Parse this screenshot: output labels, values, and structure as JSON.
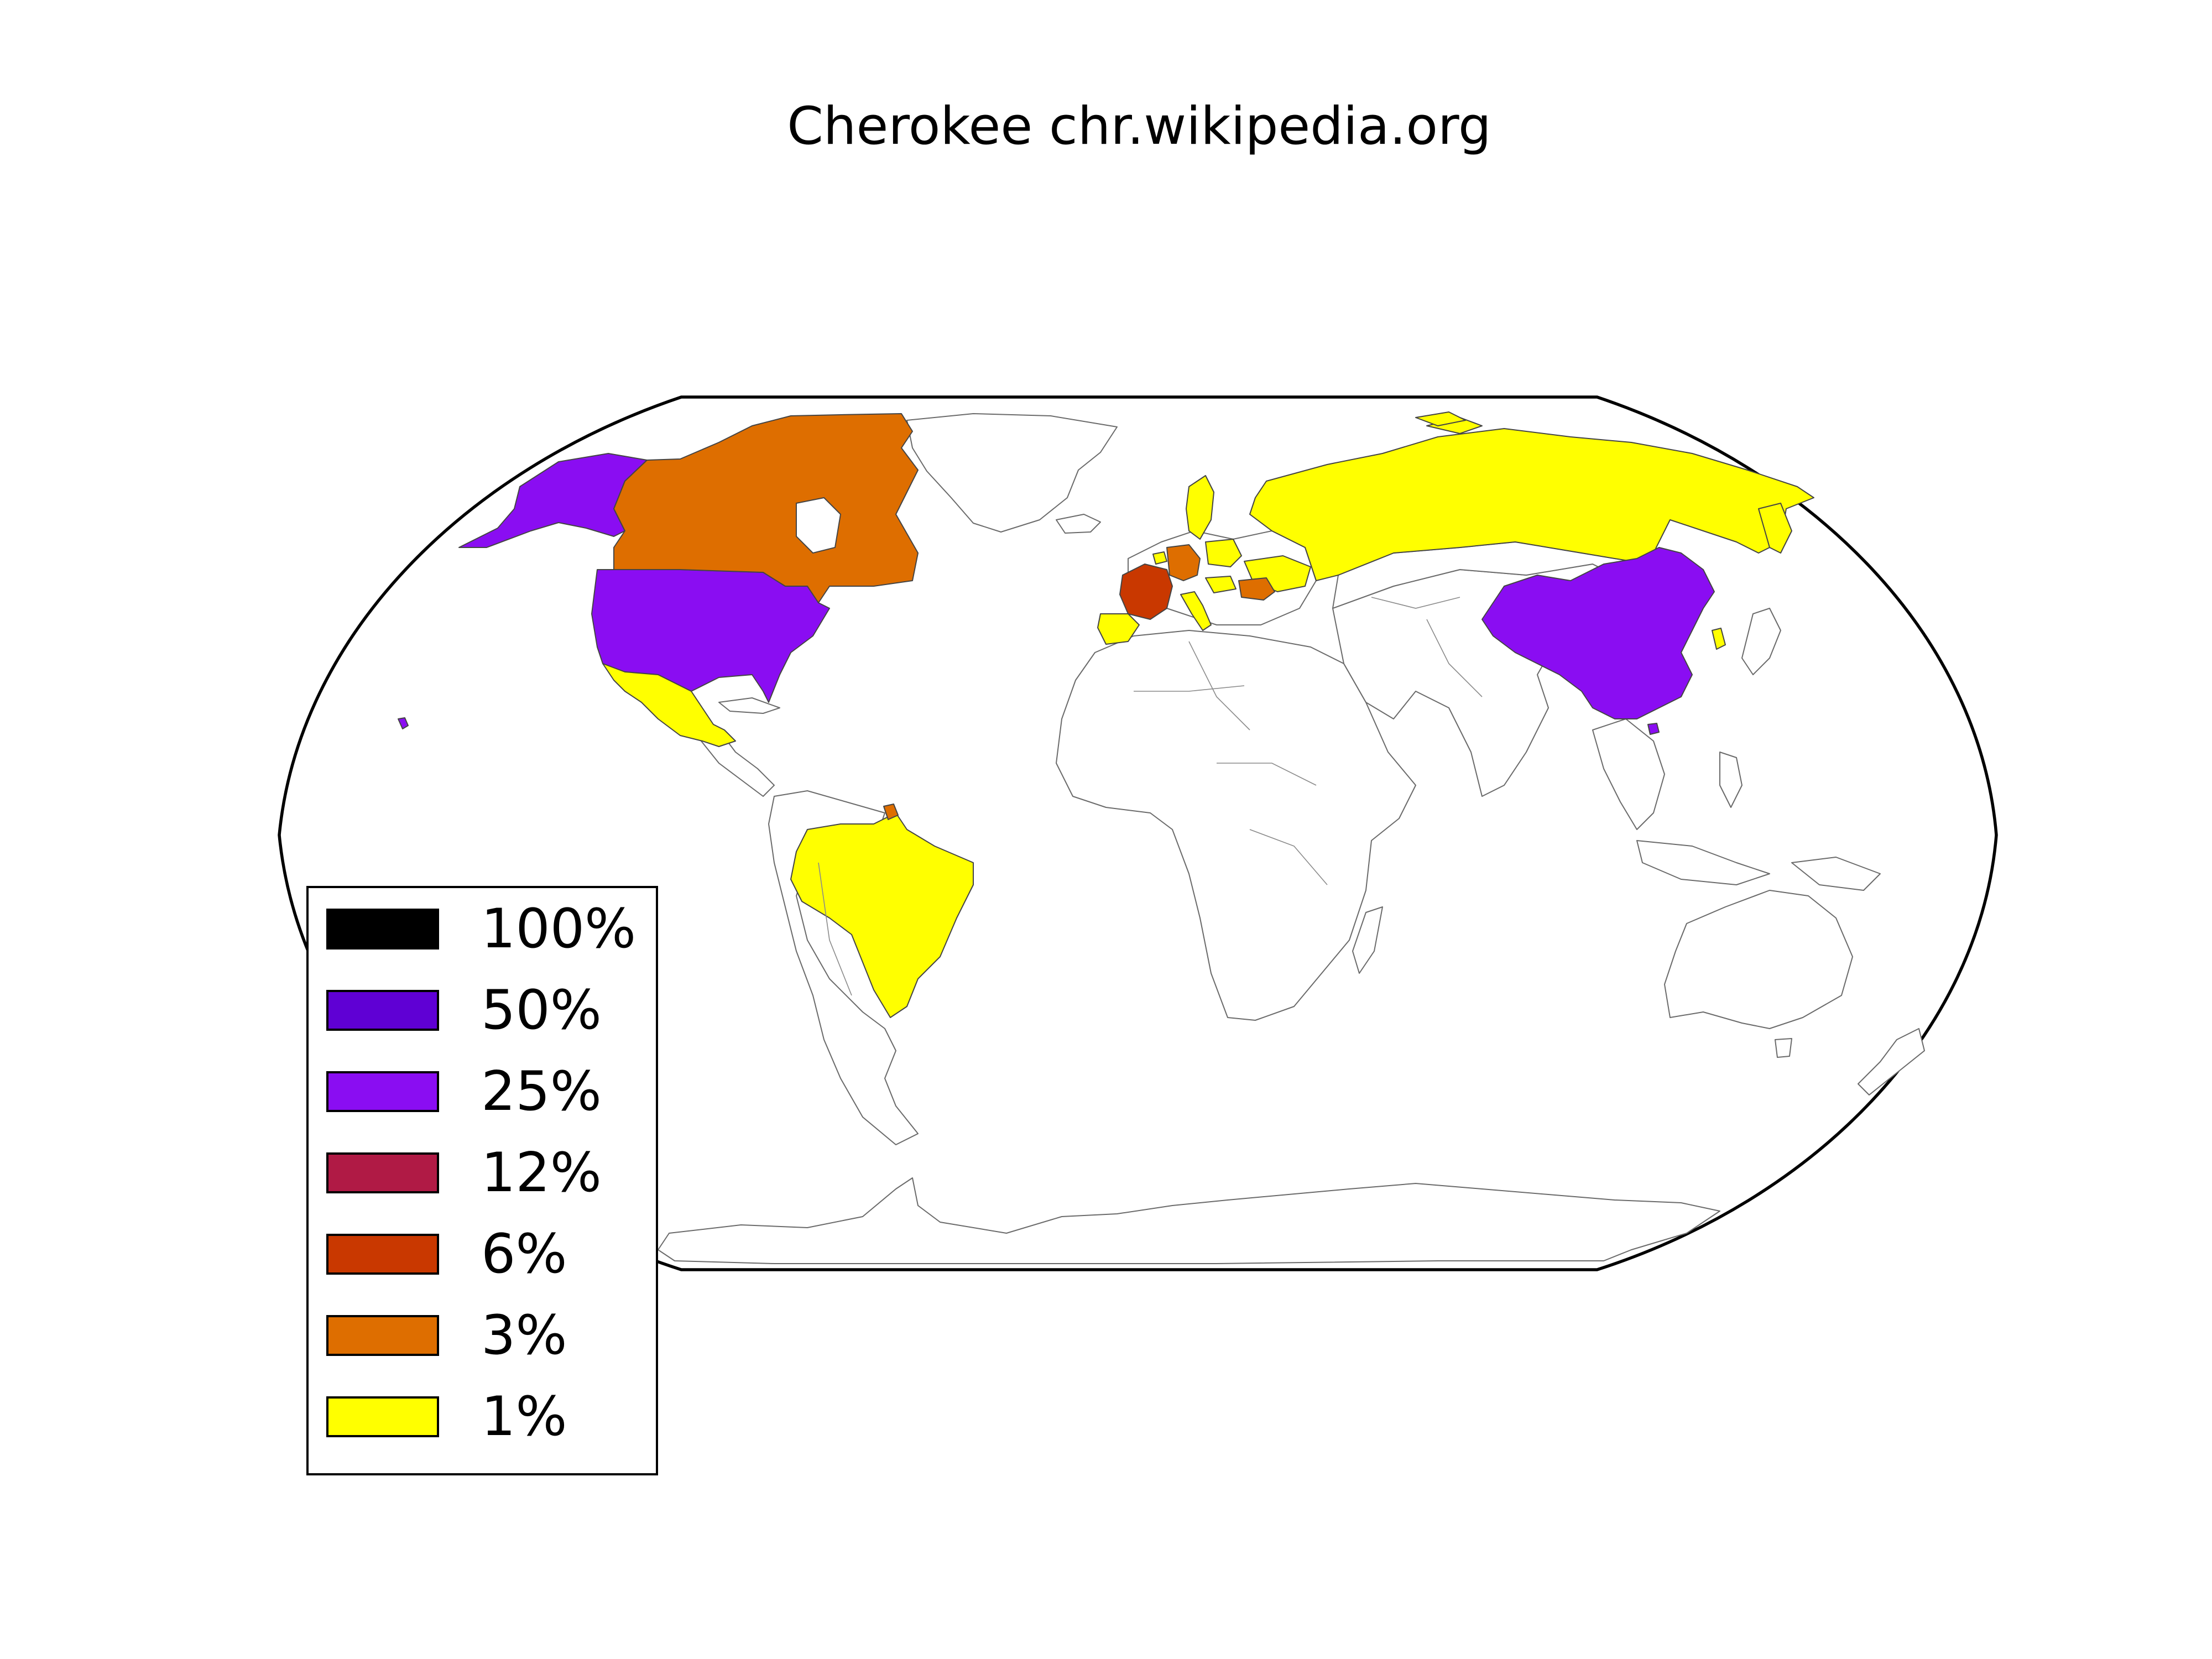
{
  "title": "Cherokee chr.wikipedia.org",
  "colors": {
    "p100": "#000000",
    "p50": "#5f00d4",
    "p25": "#8a0df2",
    "p12": "#b01a45",
    "p6": "#c93800",
    "p3": "#de6e00",
    "p1": "#ffff00",
    "no_data": "#ffffff"
  },
  "legend": [
    {
      "label": "100%",
      "color": "#000000"
    },
    {
      "label": "50%",
      "color": "#5f00d4"
    },
    {
      "label": "25%",
      "color": "#8a0df2"
    },
    {
      "label": "12%",
      "color": "#b01a45"
    },
    {
      "label": "6%",
      "color": "#c93800"
    },
    {
      "label": "3%",
      "color": "#de6e00"
    },
    {
      "label": "1%",
      "color": "#ffff00"
    }
  ],
  "countries": [
    {
      "name": "United States",
      "bucket": "25%"
    },
    {
      "name": "China",
      "bucket": "25%"
    },
    {
      "name": "Canada",
      "bucket": "3%"
    },
    {
      "name": "Germany",
      "bucket": "3%"
    },
    {
      "name": "Romania",
      "bucket": "3%"
    },
    {
      "name": "French Guiana",
      "bucket": "3%"
    },
    {
      "name": "France",
      "bucket": "6%"
    },
    {
      "name": "Russia",
      "bucket": "1%"
    },
    {
      "name": "Mexico",
      "bucket": "1%"
    },
    {
      "name": "Brazil",
      "bucket": "1%"
    },
    {
      "name": "Spain",
      "bucket": "1%"
    },
    {
      "name": "Italy",
      "bucket": "1%"
    },
    {
      "name": "Sweden",
      "bucket": "1%"
    },
    {
      "name": "Poland",
      "bucket": "1%"
    },
    {
      "name": "Ukraine",
      "bucket": "1%"
    },
    {
      "name": "Hungary",
      "bucket": "1%"
    },
    {
      "name": "South Korea",
      "bucket": "1%"
    },
    {
      "name": "Belgium",
      "bucket": "1%"
    }
  ]
}
